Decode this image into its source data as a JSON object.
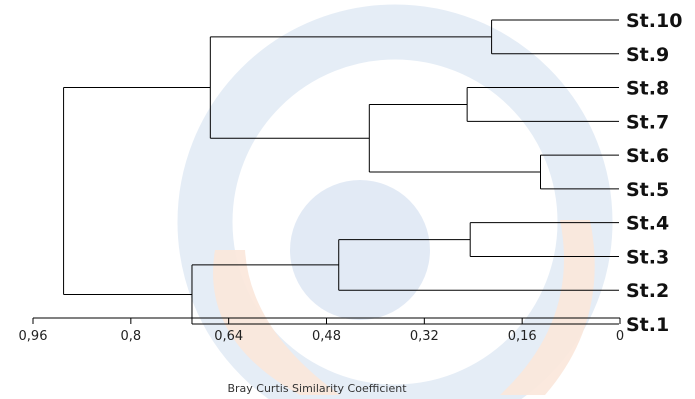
{
  "chart_data": {
    "type": "dendrogram",
    "orientation": "horizontal",
    "xlabel": "Bray Curtis Similarity Coefficient",
    "xlim": [
      0.96,
      0
    ],
    "x_ticks": [
      0.96,
      0.8,
      0.64,
      0.48,
      0.32,
      0.16,
      0
    ],
    "x_tick_labels": [
      "0,96",
      "0,8",
      "0,64",
      "0,48",
      "0,32",
      "0,16",
      "0"
    ],
    "leaves": [
      "St.10",
      "St.9",
      "St.8",
      "St.7",
      "St.6",
      "St.5",
      "St.4",
      "St.3",
      "St.2",
      "St.1"
    ],
    "merges": [
      {
        "id": "c1",
        "left": "St.10",
        "right": "St.9",
        "height": 0.21
      },
      {
        "id": "c2",
        "left": "St.8",
        "right": "St.7",
        "height": 0.25
      },
      {
        "id": "c3",
        "left": "St.6",
        "right": "St.5",
        "height": 0.13
      },
      {
        "id": "c4",
        "left": "c2",
        "right": "c3",
        "height": 0.41
      },
      {
        "id": "c5",
        "left": "c1",
        "right": "c4",
        "height": 0.67
      },
      {
        "id": "c6",
        "left": "St.4",
        "right": "St.3",
        "height": 0.245
      },
      {
        "id": "c7",
        "left": "c6",
        "right": "St.2",
        "height": 0.46
      },
      {
        "id": "c8",
        "left": "c7",
        "right": "St.1",
        "height": 0.7
      },
      {
        "id": "c9",
        "left": "c5",
        "right": "c8",
        "height": 0.91
      }
    ],
    "background_logo_colors": [
      "#dfe8f4",
      "#fbe7da"
    ]
  }
}
